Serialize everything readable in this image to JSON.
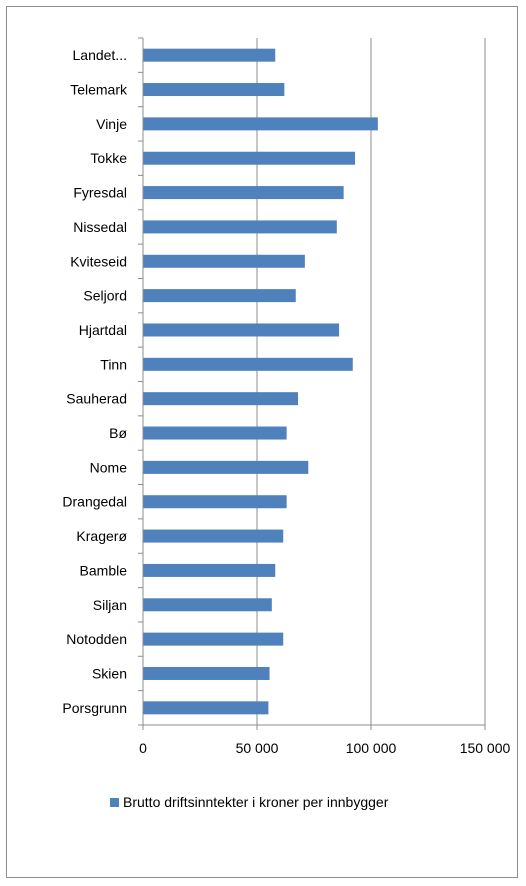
{
  "chart_data": {
    "type": "bar",
    "orientation": "horizontal",
    "categories": [
      "Landet...",
      "Telemark",
      "Vinje",
      "Tokke",
      "Fyresdal",
      "Nissedal",
      "Kviteseid",
      "Seljord",
      "Hjartdal",
      "Tinn",
      "Sauherad",
      "Bø",
      "Nome",
      "Drangedal",
      "Kragerø",
      "Bamble",
      "Siljan",
      "Notodden",
      "Skien",
      "Porsgrunn"
    ],
    "series": [
      {
        "name": "Brutto driftsinntekter i kroner per innbygger",
        "values": [
          58000,
          62000,
          103000,
          93000,
          88000,
          85000,
          71000,
          67000,
          86000,
          92000,
          68000,
          63000,
          72500,
          63000,
          61500,
          58000,
          56500,
          61500,
          55500,
          55000
        ]
      }
    ],
    "xlim": [
      0,
      150000
    ],
    "xticks": [
      0,
      50000,
      100000,
      150000
    ],
    "xtick_labels": [
      "0",
      "50 000",
      "100 000",
      "150 000"
    ],
    "grid": true,
    "legend": "bottom",
    "bar_color": "#4f81bd"
  }
}
